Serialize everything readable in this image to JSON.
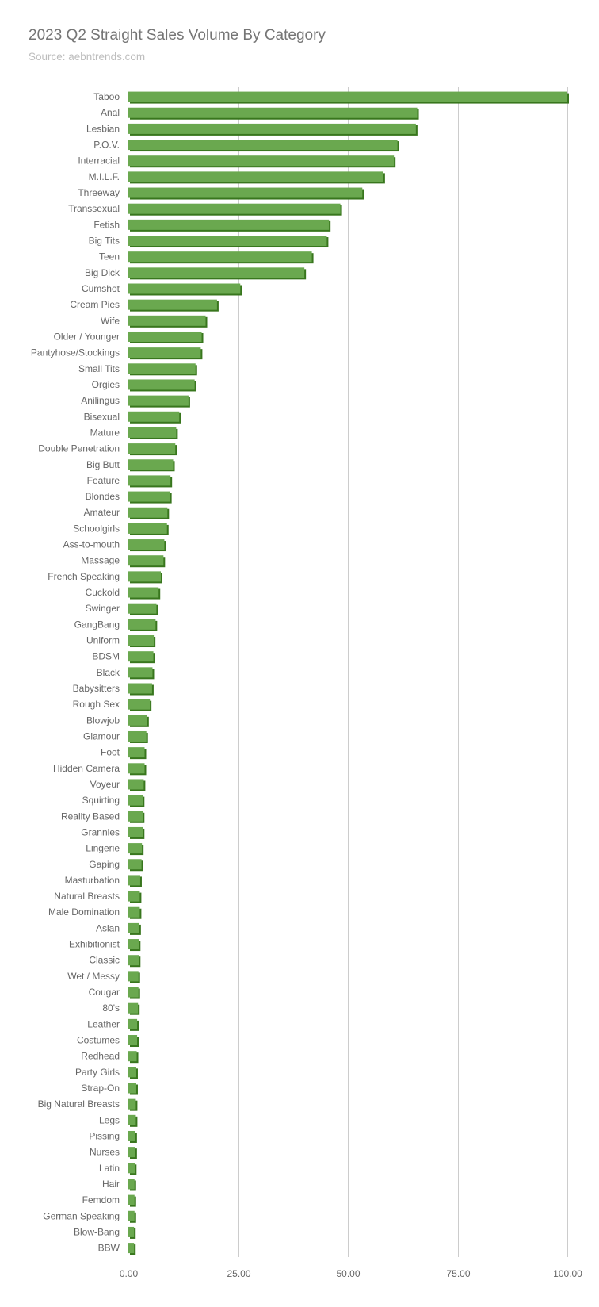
{
  "chart_data": {
    "type": "bar",
    "orientation": "horizontal",
    "title": "2023 Q2 Straight Sales Volume By Category",
    "subtitle": "Source: aebntrends.com",
    "xlabel": "",
    "ylabel": "",
    "xlim": [
      0,
      100
    ],
    "x_ticks": [
      "0.00",
      "25.00",
      "50.00",
      "75.00",
      "100.00"
    ],
    "grid": true,
    "legend": "none",
    "bar_color": "#6aa84f",
    "bar_shadow_color": "#38761d",
    "categories": [
      "Taboo",
      "Anal",
      "Lesbian",
      "P.O.V.",
      "Interracial",
      "M.I.L.F.",
      "Threeway",
      "Transsexual",
      "Fetish",
      "Big Tits",
      "Teen",
      "Big Dick",
      "Cumshot",
      "Cream Pies",
      "Wife",
      "Older / Younger",
      "Pantyhose/Stockings",
      "Small Tits",
      "Orgies",
      "Anilingus",
      "Bisexual",
      "Mature",
      "Double Penetration",
      "Big Butt",
      "Feature",
      "Blondes",
      "Amateur",
      "Schoolgirls",
      "Ass-to-mouth",
      "Massage",
      "French Speaking",
      "Cuckold",
      "Swinger",
      "GangBang",
      "Uniform",
      "BDSM",
      "Black",
      "Babysitters",
      "Rough Sex",
      "Blowjob",
      "Glamour",
      "Foot",
      "Hidden Camera",
      "Voyeur",
      "Squirting",
      "Reality Based",
      "Grannies",
      "Lingerie",
      "Gaping",
      "Masturbation",
      "Natural Breasts",
      "Male Domination",
      "Asian",
      "Exhibitionist",
      "Classic",
      "Wet / Messy",
      "Cougar",
      "80's",
      "Leather",
      "Costumes",
      "Redhead",
      "Party Girls",
      "Strap-On",
      "Big Natural Breasts",
      "Legs",
      "Pissing",
      "Nurses",
      "Latin",
      "Hair",
      "Femdom",
      "German Speaking",
      "Blow-Bang",
      "BBW"
    ],
    "values": [
      100,
      65.8,
      65.5,
      61.3,
      60.5,
      58.1,
      53.3,
      48.3,
      45.7,
      45.2,
      41.8,
      40.1,
      25.5,
      20.2,
      17.6,
      16.7,
      16.5,
      15.3,
      15.1,
      13.7,
      11.6,
      10.9,
      10.7,
      10.2,
      9.6,
      9.5,
      8.9,
      8.8,
      8.2,
      8.0,
      7.4,
      6.9,
      6.4,
      6.2,
      5.8,
      5.7,
      5.5,
      5.4,
      4.9,
      4.3,
      4.1,
      3.7,
      3.7,
      3.5,
      3.3,
      3.3,
      3.3,
      3.1,
      3.0,
      2.7,
      2.6,
      2.6,
      2.5,
      2.4,
      2.4,
      2.3,
      2.3,
      2.2,
      2.0,
      2.0,
      1.9,
      1.8,
      1.8,
      1.7,
      1.7,
      1.6,
      1.6,
      1.5,
      1.4,
      1.4,
      1.4,
      1.3,
      1.3
    ]
  }
}
